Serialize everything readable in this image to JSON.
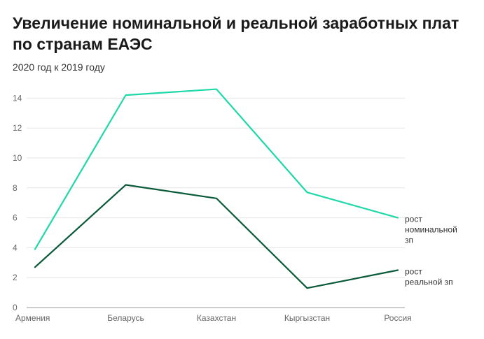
{
  "chart_data": {
    "type": "line",
    "title": "Увеличение номинальной и реальной заработных плат по странам ЕАЭС",
    "subtitle": "2020 год к 2019 году",
    "categories": [
      "Армения",
      "Беларусь",
      "Казахстан",
      "Кыргызстан",
      "Россия"
    ],
    "y_ticks": [
      "0",
      "2",
      "4",
      "6",
      "8",
      "10",
      "12",
      "14"
    ],
    "ylim": [
      0,
      15
    ],
    "grid": true,
    "series": [
      {
        "name": "рост номинальной зп",
        "label_lines": [
          "рост",
          "номинальной",
          "зп"
        ],
        "color": "#1fd8a8",
        "values": [
          3.9,
          14.2,
          14.6,
          7.7,
          6.0
        ]
      },
      {
        "name": "рост реальной зп",
        "label_lines": [
          "рост",
          "реальной зп"
        ],
        "color": "#0b5a3a",
        "values": [
          2.7,
          8.2,
          7.3,
          1.3,
          2.5
        ]
      }
    ]
  }
}
